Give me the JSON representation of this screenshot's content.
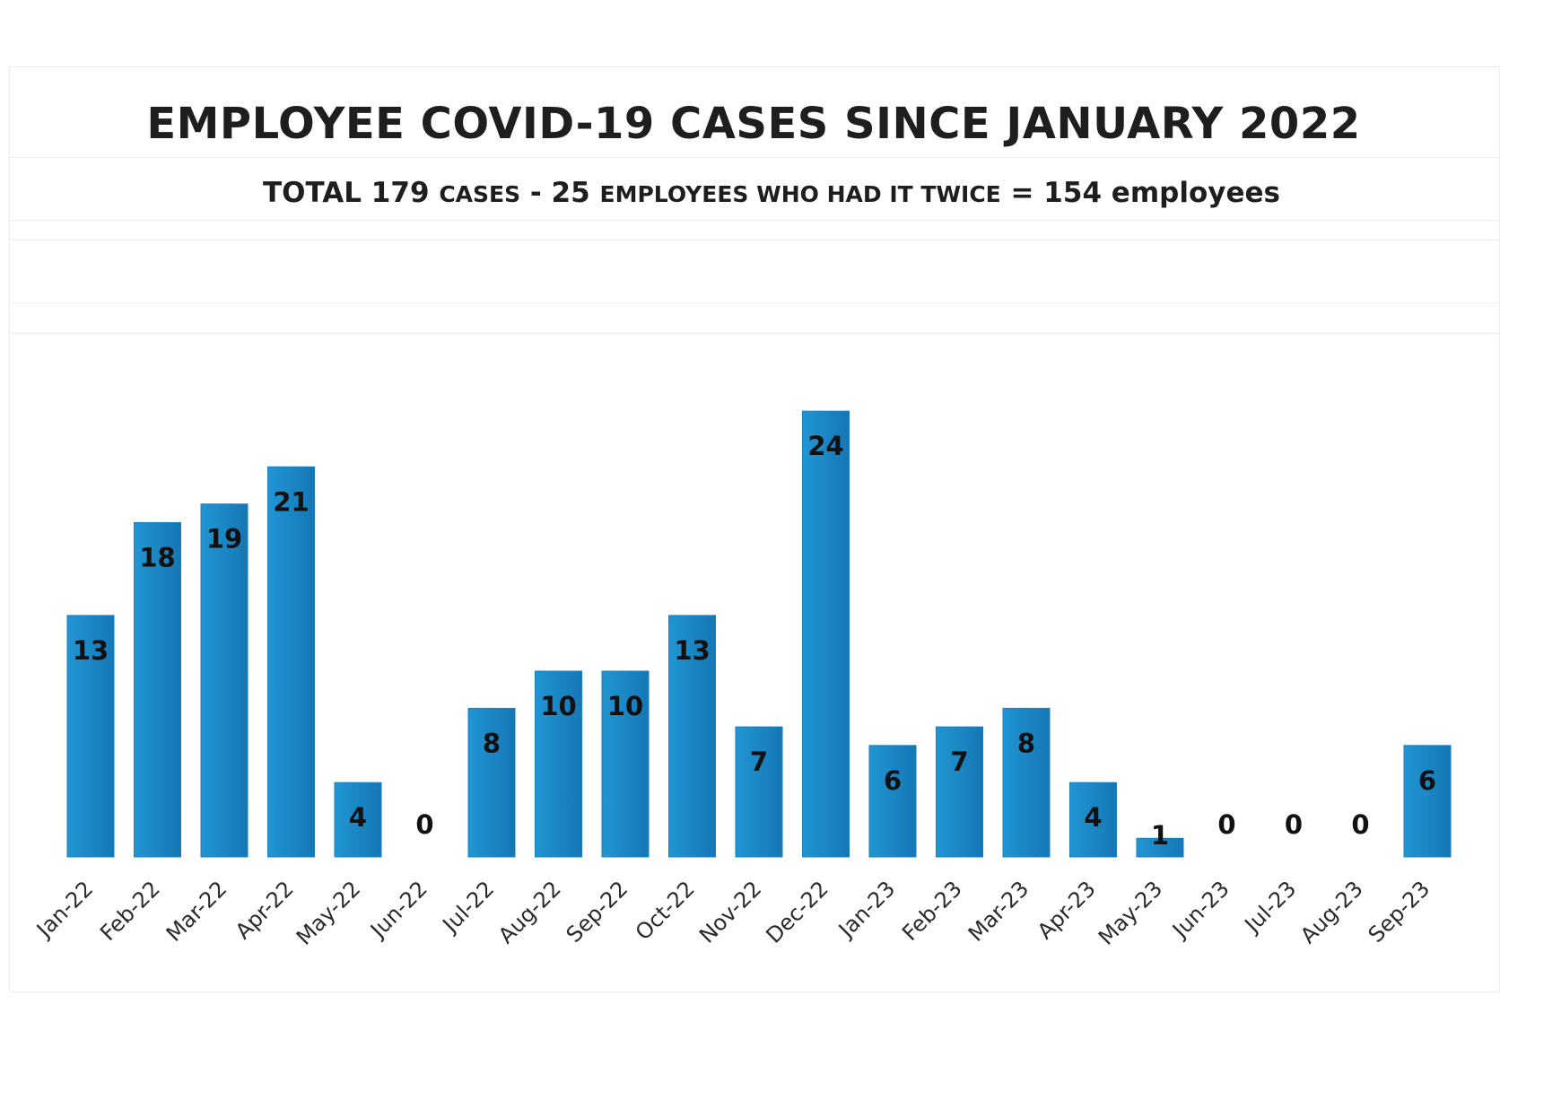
{
  "chart_data": {
    "type": "bar",
    "title": "EMPLOYEE COVID-19 CASES SINCE JANUARY 2022",
    "subtitle": {
      "part1": "TOTAL 179 ",
      "part2": "CASES",
      "part3": " - 25 ",
      "part4": "EMPLOYEES WHO HAD IT TWICE",
      "part5": " = 154 employees"
    },
    "xlabel": "",
    "ylabel": "",
    "ylim": [
      0,
      24
    ],
    "grid": false,
    "data_labels": true,
    "bar_color": "#2196d3",
    "bar_color_dark": "#1577b5",
    "categories": [
      "Jan-22",
      "Feb-22",
      "Mar-22",
      "Apr-22",
      "May-22",
      "Jun-22",
      "Jul-22",
      "Aug-22",
      "Sep-22",
      "Oct-22",
      "Nov-22",
      "Dec-22",
      "Jan-23",
      "Feb-23",
      "Mar-23",
      "Apr-23",
      "May-23",
      "Jun-23",
      "Jul-23",
      "Aug-23",
      "Sep-23"
    ],
    "values": [
      13,
      18,
      19,
      21,
      4,
      0,
      8,
      10,
      10,
      13,
      7,
      24,
      6,
      7,
      8,
      4,
      1,
      0,
      0,
      0,
      6
    ]
  }
}
